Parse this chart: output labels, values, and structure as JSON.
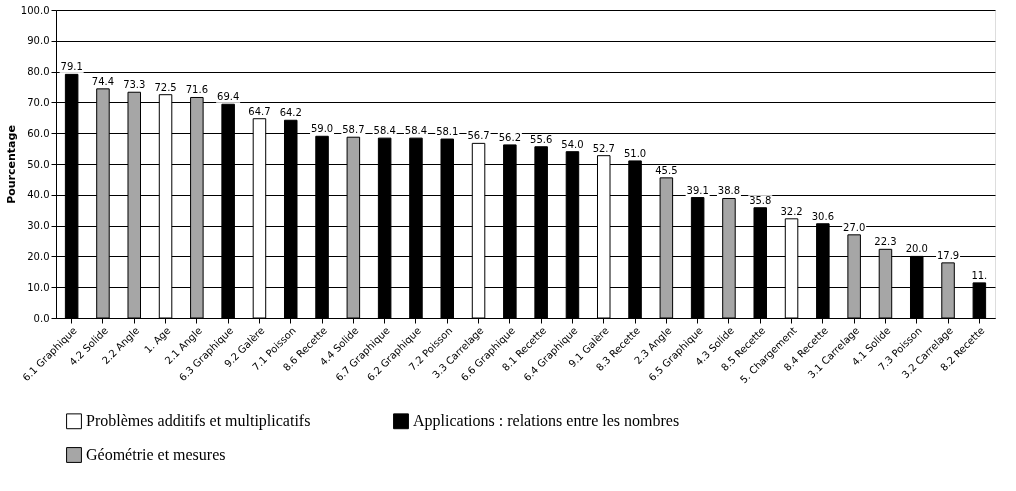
{
  "chart_data": {
    "type": "bar",
    "ylabel": "Pourcentage",
    "categories": [
      "6.1 Graphique",
      "4.2 Solide",
      "2.2 Angle",
      "1. Age",
      "2.1 Angle",
      "6.3 Graphique",
      "9.2 Galère",
      "7.1 Poisson",
      "8.6 Recette",
      "4.4 Solide",
      "6.7 Graphique",
      "6.2 Graphique",
      "7.2 Poisson",
      "3.3 Carrelage",
      "6.6 Graphique",
      "8.1 Recette",
      "6.4 Graphique",
      "9.1 Galère",
      "8.3 Recette",
      "2.3 Angle",
      "6.5 Graphique",
      "4.3 Solide",
      "8.5 Recette",
      "5. Chargement",
      "8.4 Recette",
      "3.1 Carrelage",
      "4.1 Solide",
      "7.3 Poisson",
      "3.2 Carrelage",
      "8.2 Recette"
    ],
    "series": [
      {
        "name": "Problèmes additifs et multiplicatifs",
        "color": "#ffffff",
        "values": [
          null,
          null,
          null,
          72.5,
          null,
          null,
          64.7,
          null,
          null,
          null,
          null,
          null,
          null,
          56.7,
          null,
          null,
          null,
          52.7,
          null,
          null,
          null,
          null,
          null,
          32.2,
          null,
          null,
          null,
          null,
          null,
          null
        ],
        "value_labels": [
          null,
          null,
          null,
          "72.5",
          null,
          null,
          "64.7",
          null,
          null,
          null,
          null,
          null,
          null,
          "56.7",
          null,
          null,
          null,
          "52.7",
          null,
          null,
          null,
          null,
          null,
          "32.2",
          null,
          null,
          null,
          null,
          null,
          null
        ]
      },
      {
        "name": "Applications : relations entre les nombres",
        "color": "#000000",
        "values": [
          79.1,
          null,
          null,
          null,
          null,
          69.4,
          null,
          64.2,
          59.0,
          null,
          58.4,
          58.4,
          58.1,
          null,
          56.2,
          55.6,
          54.0,
          null,
          51.0,
          null,
          39.1,
          null,
          35.8,
          null,
          30.6,
          null,
          null,
          20.0,
          null,
          11.4
        ],
        "value_labels": [
          "79.1",
          null,
          null,
          null,
          null,
          "69.4",
          null,
          "64.2",
          "59.0",
          null,
          "58.4",
          "58.4",
          "58.1",
          null,
          "56.2",
          "55.6",
          "54.0",
          null,
          "51.0",
          null,
          "39.1",
          null,
          "35.8",
          null,
          "30.6",
          null,
          null,
          "20.0",
          null,
          "11."
        ]
      },
      {
        "name": "Géométrie et mesures",
        "color": "#a6a6a6",
        "values": [
          null,
          74.4,
          73.3,
          null,
          71.6,
          null,
          null,
          null,
          null,
          58.7,
          null,
          null,
          null,
          null,
          null,
          null,
          null,
          null,
          null,
          45.5,
          null,
          38.8,
          null,
          null,
          null,
          27.0,
          22.3,
          null,
          17.9,
          null
        ],
        "value_labels": [
          null,
          "74.4",
          "73.3",
          null,
          "71.6",
          null,
          null,
          null,
          null,
          "58.7",
          null,
          null,
          null,
          null,
          null,
          null,
          null,
          null,
          null,
          "45.5",
          null,
          "38.8",
          null,
          null,
          null,
          "27.0",
          "22.3",
          null,
          "17.9",
          null
        ]
      }
    ],
    "ylim": [
      0,
      100
    ],
    "yticks": [
      {
        "value": 0,
        "label": "0.0"
      },
      {
        "value": 10,
        "label": "10.0"
      },
      {
        "value": 20,
        "label": "20.0"
      },
      {
        "value": 30,
        "label": "30.0"
      },
      {
        "value": 40,
        "label": "40.0"
      },
      {
        "value": 50,
        "label": "50.0"
      },
      {
        "value": 60,
        "label": "60.0"
      },
      {
        "value": 70,
        "label": "70.0"
      },
      {
        "value": 80,
        "label": "80.0"
      },
      {
        "value": 90,
        "label": "90.0"
      },
      {
        "value": 100,
        "label": "100.0"
      }
    ],
    "grid": "y",
    "legend": "bottom"
  }
}
